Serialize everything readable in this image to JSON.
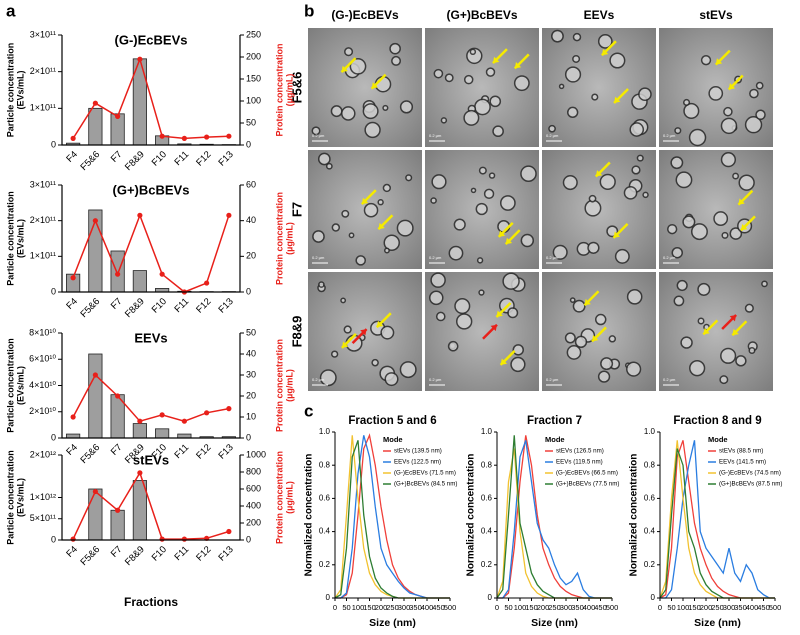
{
  "panel_labels": [
    "a",
    "b",
    "c"
  ],
  "micrographs": {
    "columns": [
      "(G-)EcBEVs",
      "(G+)BcBEVs",
      "EEVs",
      "stEVs"
    ],
    "rows": [
      "F5&6",
      "F7",
      "F8&9"
    ],
    "scale_bar": "0.2 µm"
  },
  "chart_data": [
    {
      "type": "combo",
      "title": "(G-)EcBEVs",
      "y_label": [
        "Particle concentration",
        "(EVs/mL)"
      ],
      "y2_label": [
        "Protein concentration",
        "(µg/mL)"
      ],
      "categories": [
        "F4",
        "F5&6",
        "F7",
        "F8&9",
        "F10",
        "F11",
        "F12",
        "F13"
      ],
      "ylim": [
        0,
        300000000000
      ],
      "yticks": [
        0,
        {
          "value": 100000000000,
          "label": "1×10¹¹"
        },
        {
          "value": 200000000000,
          "label": "2×10¹¹"
        },
        {
          "value": 300000000000,
          "label": "3×10¹¹"
        }
      ],
      "y2lim": [
        0,
        250
      ],
      "y2ticks": [
        0,
        50,
        100,
        150,
        200,
        250
      ],
      "series": [
        {
          "color": "#9e9e9e",
          "values": [
            5000000000,
            100000000000,
            85000000000,
            235000000000,
            25000000000,
            3000000000,
            2000000000,
            1000000000
          ]
        },
        {
          "color": "#e8201a",
          "axis": "y2",
          "values": [
            15,
            95,
            65,
            195,
            20,
            15,
            18,
            20
          ]
        }
      ]
    },
    {
      "type": "combo",
      "title": "(G+)BcBEVs",
      "y_label": [
        "Particle concentration",
        "(EVs/mL)"
      ],
      "y2_label": [
        "Protein concentration",
        "(µg/mL)"
      ],
      "categories": [
        "F4",
        "F5&6",
        "F7",
        "F8&9",
        "F10",
        "F11",
        "F12",
        "F13"
      ],
      "ylim": [
        0,
        300000000000
      ],
      "yticks": [
        0,
        {
          "value": 100000000000,
          "label": "1×10¹¹"
        },
        {
          "value": 200000000000,
          "label": "2×10¹¹"
        },
        {
          "value": 300000000000,
          "label": "3×10¹¹"
        }
      ],
      "y2lim": [
        0,
        60
      ],
      "y2ticks": [
        0,
        20,
        40,
        60
      ],
      "series": [
        {
          "color": "#9e9e9e",
          "values": [
            50000000000,
            230000000000,
            115000000000,
            60000000000,
            10000000000,
            2000000000,
            1000000000,
            1000000000
          ]
        },
        {
          "color": "#e8201a",
          "axis": "y2",
          "values": [
            8,
            40,
            10,
            43,
            10,
            0,
            5,
            43
          ]
        }
      ]
    },
    {
      "type": "combo",
      "title": "EEVs",
      "y_label": [
        "Particle concentration",
        "(EVs/mL)"
      ],
      "y2_label": [
        "Protein concentration",
        "(µg/mL)"
      ],
      "categories": [
        "F4",
        "F5&6",
        "F7",
        "F8&9",
        "F10",
        "F11",
        "F12",
        "F13"
      ],
      "ylim": [
        0,
        80000000000
      ],
      "yticks": [
        0,
        {
          "value": 20000000000,
          "label": "2×10¹⁰"
        },
        {
          "value": 40000000000,
          "label": "4×10¹⁰"
        },
        {
          "value": 60000000000,
          "label": "6×10¹⁰"
        },
        {
          "value": 80000000000,
          "label": "8×10¹⁰"
        }
      ],
      "y2lim": [
        0,
        50
      ],
      "y2ticks": [
        0,
        10,
        20,
        30,
        40,
        50
      ],
      "series": [
        {
          "color": "#9e9e9e",
          "values": [
            3000000000,
            64000000000,
            33000000000,
            11000000000,
            7000000000,
            3000000000,
            1000000000,
            1000000000
          ]
        },
        {
          "color": "#e8201a",
          "axis": "y2",
          "values": [
            10,
            30,
            20,
            8,
            11,
            8,
            12,
            14
          ]
        }
      ]
    },
    {
      "type": "combo",
      "title": "stEVs",
      "y_label": [
        "Particle concentration",
        "(EVs/mL)"
      ],
      "y2_label": [
        "Protein concentration",
        "(µg/mL)"
      ],
      "x_label": "Fractions",
      "categories": [
        "F4",
        "F5&6",
        "F7",
        "F8&9",
        "F10",
        "F11",
        "F12",
        "F13"
      ],
      "ylim": [
        0,
        2000000000000
      ],
      "yticks": [
        0,
        {
          "value": 500000000000,
          "label": "5×10¹¹"
        },
        {
          "value": 1000000000000,
          "label": "1×10¹²"
        },
        {
          "value": 2000000000000,
          "label": "2×10¹²"
        }
      ],
      "y2lim": [
        0,
        1000
      ],
      "y2ticks": [
        0,
        200,
        400,
        600,
        800,
        1000
      ],
      "series": [
        {
          "color": "#9e9e9e",
          "values": [
            0,
            1200000000000,
            700000000000,
            1400000000000,
            0,
            0,
            0,
            0
          ]
        },
        {
          "color": "#e8201a",
          "axis": "y2",
          "values": [
            10,
            570,
            350,
            790,
            10,
            10,
            20,
            100
          ]
        }
      ]
    },
    {
      "type": "line",
      "title": "Fraction 5 and 6",
      "x_label": "Size (nm)",
      "y_label": "Normalized concentration",
      "legend_title": "Mode",
      "xlim": [
        0,
        500
      ],
      "xticks": [
        0,
        50,
        100,
        150,
        200,
        250,
        300,
        350,
        400,
        450,
        500
      ],
      "ylim": [
        0,
        1
      ],
      "yticks": [
        0,
        {
          "value": 0.2,
          "label": "0.2"
        },
        {
          "value": 0.4,
          "label": "0.4"
        },
        {
          "value": 0.6,
          "label": "0.6"
        },
        {
          "value": 0.8,
          "label": "0.8"
        },
        {
          "value": 1,
          "label": "1.0"
        }
      ],
      "x": [
        0,
        25,
        50,
        75,
        100,
        125,
        150,
        175,
        200,
        225,
        250,
        275,
        300,
        325,
        350,
        375,
        400,
        425,
        450,
        475,
        500
      ],
      "series": [
        {
          "name": "stEVs (139.5 nm)",
          "color": "#f0403a",
          "values": [
            0,
            0,
            0.02,
            0.15,
            0.5,
            0.9,
            0.98,
            0.8,
            0.55,
            0.35,
            0.2,
            0.12,
            0.07,
            0.04,
            0.02,
            0.01,
            0,
            0,
            0,
            0,
            0
          ]
        },
        {
          "name": "EEVs (122.5 nm)",
          "color": "#2a7de1",
          "values": [
            0,
            0,
            0.03,
            0.3,
            0.75,
            0.98,
            0.85,
            0.55,
            0.3,
            0.2,
            0.15,
            0.1,
            0.06,
            0.03,
            0.02,
            0.01,
            0,
            0,
            0,
            0,
            0
          ]
        },
        {
          "name": "(G-)EcBEVs (71.5 nm)",
          "color": "#f2c230",
          "values": [
            0,
            0.05,
            0.5,
            0.98,
            0.6,
            0.3,
            0.15,
            0.08,
            0.04,
            0.02,
            0.01,
            0,
            0,
            0,
            0,
            0,
            0,
            0,
            0,
            0,
            0
          ]
        },
        {
          "name": "(G+)BcBEVs (84.5 nm)",
          "color": "#2e7d32",
          "values": [
            0,
            0.02,
            0.3,
            0.85,
            0.95,
            0.5,
            0.25,
            0.12,
            0.06,
            0.03,
            0.01,
            0,
            0,
            0,
            0,
            0,
            0,
            0,
            0,
            0,
            0
          ]
        }
      ]
    },
    {
      "type": "line",
      "title": "Fraction 7",
      "x_label": "Size (nm)",
      "y_label": "Normalized concentration",
      "legend_title": "Mode",
      "xlim": [
        0,
        500
      ],
      "xticks": [
        0,
        50,
        100,
        150,
        200,
        250,
        300,
        350,
        400,
        450,
        500
      ],
      "ylim": [
        0,
        1
      ],
      "yticks": [
        0,
        {
          "value": 0.2,
          "label": "0.2"
        },
        {
          "value": 0.4,
          "label": "0.4"
        },
        {
          "value": 0.6,
          "label": "0.6"
        },
        {
          "value": 0.8,
          "label": "0.8"
        },
        {
          "value": 1,
          "label": "1.0"
        }
      ],
      "x": [
        0,
        25,
        50,
        75,
        100,
        125,
        150,
        175,
        200,
        225,
        250,
        275,
        300,
        325,
        350,
        375,
        400,
        425,
        450,
        475,
        500
      ],
      "series": [
        {
          "name": "stEVs (126.5 nm)",
          "color": "#f0403a",
          "values": [
            0,
            0,
            0.03,
            0.3,
            0.7,
            0.98,
            0.8,
            0.5,
            0.3,
            0.2,
            0.12,
            0.07,
            0.04,
            0.02,
            0.01,
            0,
            0,
            0,
            0,
            0,
            0
          ]
        },
        {
          "name": "EEVs (119.5 nm)",
          "color": "#2a7de1",
          "values": [
            0,
            0,
            0.05,
            0.4,
            0.85,
            0.95,
            0.7,
            0.45,
            0.35,
            0.3,
            0.2,
            0.12,
            0.08,
            0.1,
            0.15,
            0.05,
            0.01,
            0,
            0,
            0,
            0
          ]
        },
        {
          "name": "(G-)EcBEVs (66.5 nm)",
          "color": "#f2c230",
          "values": [
            0,
            0.1,
            0.7,
            0.9,
            0.4,
            0.15,
            0.07,
            0.03,
            0.01,
            0,
            0,
            0,
            0,
            0,
            0,
            0,
            0,
            0,
            0,
            0,
            0
          ]
        },
        {
          "name": "(G+)BcBEVs (77.5 nm)",
          "color": "#2e7d32",
          "values": [
            0,
            0.05,
            0.5,
            0.98,
            0.45,
            0.3,
            0.15,
            0.08,
            0.04,
            0.02,
            0,
            0,
            0,
            0,
            0,
            0,
            0,
            0,
            0,
            0,
            0
          ]
        }
      ]
    },
    {
      "type": "line",
      "title": "Fraction 8 and 9",
      "x_label": "Size (nm)",
      "y_label": "Normalized concentration",
      "legend_title": "Mode",
      "xlim": [
        0,
        500
      ],
      "xticks": [
        0,
        50,
        100,
        150,
        200,
        250,
        300,
        350,
        400,
        450,
        500
      ],
      "ylim": [
        0,
        1
      ],
      "yticks": [
        0,
        {
          "value": 0.2,
          "label": "0.2"
        },
        {
          "value": 0.4,
          "label": "0.4"
        },
        {
          "value": 0.6,
          "label": "0.6"
        },
        {
          "value": 0.8,
          "label": "0.8"
        },
        {
          "value": 1,
          "label": "1.0"
        }
      ],
      "x": [
        0,
        25,
        50,
        75,
        100,
        125,
        150,
        175,
        200,
        225,
        250,
        275,
        300,
        325,
        350,
        375,
        400,
        425,
        450,
        475,
        500
      ],
      "series": [
        {
          "name": "stEVs (88.5 nm)",
          "color": "#f0403a",
          "values": [
            0,
            0.02,
            0.3,
            0.85,
            0.95,
            0.7,
            0.45,
            0.3,
            0.2,
            0.12,
            0.07,
            0.04,
            0.02,
            0.01,
            0,
            0,
            0,
            0,
            0,
            0,
            0
          ]
        },
        {
          "name": "EEVs (141.5 nm)",
          "color": "#2a7de1",
          "values": [
            0,
            0,
            0.05,
            0.3,
            0.6,
            0.8,
            0.95,
            0.4,
            0.3,
            0.25,
            0.2,
            0.15,
            0.3,
            0.15,
            0.1,
            0.2,
            0.15,
            0.05,
            0.02,
            0,
            0
          ]
        },
        {
          "name": "(G-)EcBEVs (74.5 nm)",
          "color": "#f2c230",
          "values": [
            0,
            0.1,
            0.6,
            0.95,
            0.6,
            0.3,
            0.15,
            0.08,
            0.04,
            0.02,
            0,
            0,
            0,
            0,
            0,
            0,
            0,
            0,
            0,
            0,
            0
          ]
        },
        {
          "name": "(G+)BcBEVs (87.5 nm)",
          "color": "#2e7d32",
          "values": [
            0,
            0.05,
            0.5,
            0.9,
            0.8,
            0.4,
            0.3,
            0.15,
            0.08,
            0.04,
            0.02,
            0,
            0,
            0,
            0,
            0,
            0,
            0,
            0,
            0,
            0
          ]
        }
      ]
    }
  ]
}
